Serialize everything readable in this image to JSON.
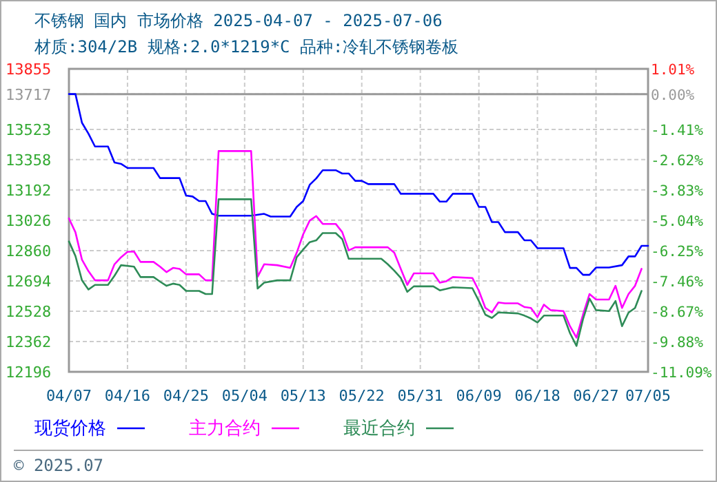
{
  "chart_data": {
    "type": "line",
    "title": "不锈钢 国内 市场价格 2025-04-07 - 2025-07-06",
    "subtitle": "材质:304/2B 规格:2.0*1219*C 品种:冷轧不锈钢卷板",
    "xlim": [
      "--04-07",
      "--07-05"
    ],
    "xticks": [
      {
        "value": "--04-07",
        "label": "04/07"
      },
      {
        "value": "--04-16",
        "label": "04/16"
      },
      {
        "value": "--04-25",
        "label": "04/25"
      },
      {
        "value": "--05-04",
        "label": "05/04"
      },
      {
        "value": "--05-13",
        "label": "05/13"
      },
      {
        "value": "--05-22",
        "label": "05/22"
      },
      {
        "value": "--05-31",
        "label": "05/31"
      },
      {
        "value": "--06-09",
        "label": "06/09"
      },
      {
        "value": "--06-18",
        "label": "06/18"
      },
      {
        "value": "--06-27",
        "label": "06/27"
      },
      {
        "value": "--07-05",
        "label": "07/05"
      }
    ],
    "ylim": [
      12196,
      13855
    ],
    "yticks": [
      13855,
      13717,
      13523,
      13358,
      13192,
      13026,
      12860,
      12694,
      12528,
      12362,
      12196
    ],
    "y2lim": [
      -11.09,
      1.01
    ],
    "y2ticks": [
      {
        "value": 1.01,
        "label": "1.01%"
      },
      {
        "value": 0,
        "label": "0.00%"
      },
      {
        "value": -1.41,
        "label": "-1.41%"
      },
      {
        "value": -2.62,
        "label": "-2.62%"
      },
      {
        "value": -3.83,
        "label": "-3.83%"
      },
      {
        "value": -5.04,
        "label": "-5.04%"
      },
      {
        "value": -6.25,
        "label": "-6.25%"
      },
      {
        "value": -7.46,
        "label": "-7.46%"
      },
      {
        "value": -8.67,
        "label": "-8.67%"
      },
      {
        "value": -9.88,
        "label": "-9.88%"
      },
      {
        "value": -11.09,
        "label": "-11.09%"
      }
    ],
    "ref_lines": [
      {
        "axis": "y2",
        "value": 0,
        "color": "#999999"
      }
    ],
    "grid": true,
    "legend": "bottom",
    "line_style": "solid",
    "annotations": [
      "© 2025.07"
    ],
    "series": [
      {
        "name": "现货价格",
        "color": "#0000ff",
        "x": [
          "--04-07",
          "--04-08",
          "--04-09",
          "--04-10",
          "--04-11",
          "--04-13",
          "--04-14",
          "--04-15",
          "--04-16",
          "--04-20",
          "--04-21",
          "--04-24",
          "--04-25",
          "--04-26",
          "--04-27",
          "--04-28",
          "--04-29",
          "--04-30",
          "--05-05",
          "--05-07",
          "--05-08",
          "--05-11",
          "--05-12",
          "--05-13",
          "--05-14",
          "--05-15",
          "--05-16",
          "--05-18",
          "--05-19",
          "--05-20",
          "--05-21",
          "--05-22",
          "--05-23",
          "--05-27",
          "--05-28",
          "--06-02",
          "--06-03",
          "--06-04",
          "--06-05",
          "--06-08",
          "--06-09",
          "--06-10",
          "--06-11",
          "--06-12",
          "--06-13",
          "--06-15",
          "--06-16",
          "--06-17",
          "--06-18",
          "--06-22",
          "--06-23",
          "--06-24",
          "--06-25",
          "--06-26",
          "--06-27",
          "--06-29",
          "--07-01",
          "--07-02",
          "--07-03",
          "--07-04",
          "--07-05"
        ],
        "values": [
          13717,
          13717,
          13560,
          13500,
          13430,
          13430,
          13342,
          13335,
          13312,
          13312,
          13257,
          13257,
          13161,
          13156,
          13131,
          13131,
          13061,
          13051,
          13051,
          13061,
          13046,
          13046,
          13099,
          13131,
          13220,
          13255,
          13300,
          13300,
          13282,
          13282,
          13242,
          13242,
          13224,
          13224,
          13171,
          13171,
          13128,
          13128,
          13171,
          13171,
          13099,
          13099,
          13016,
          13016,
          12961,
          12961,
          12916,
          12916,
          12873,
          12873,
          12765,
          12765,
          12727,
          12727,
          12767,
          12767,
          12780,
          12828,
          12828,
          12886,
          12886
        ]
      },
      {
        "name": "主力合约",
        "color": "#ff00ff",
        "x": [
          "--04-07",
          "--04-08",
          "--04-09",
          "--04-10",
          "--04-11",
          "--04-13",
          "--04-14",
          "--04-15",
          "--04-16",
          "--04-17",
          "--04-18",
          "--04-20",
          "--04-21",
          "--04-22",
          "--04-23",
          "--04-24",
          "--04-25",
          "--04-27",
          "--04-28",
          "--04-29",
          "--04-30",
          "--05-05",
          "--05-06",
          "--05-07",
          "--05-09",
          "--05-11",
          "--05-12",
          "--05-13",
          "--05-14",
          "--05-15",
          "--05-16",
          "--05-18",
          "--05-19",
          "--05-20",
          "--05-21",
          "--05-26",
          "--05-27",
          "--05-28",
          "--05-29",
          "--05-30",
          "--06-02",
          "--06-03",
          "--06-04",
          "--06-05",
          "--06-08",
          "--06-09",
          "--06-10",
          "--06-11",
          "--06-12",
          "--06-13",
          "--06-15",
          "--06-16",
          "--06-17",
          "--06-18",
          "--06-19",
          "--06-20",
          "--06-22",
          "--06-23",
          "--06-24",
          "--06-25",
          "--06-26",
          "--06-27",
          "--06-29",
          "--06-30",
          "--07-01",
          "--07-02",
          "--07-03",
          "--07-04"
        ],
        "values": [
          13036,
          12960,
          12810,
          12747,
          12697,
          12697,
          12785,
          12823,
          12853,
          12855,
          12798,
          12798,
          12772,
          12742,
          12765,
          12760,
          12730,
          12730,
          12697,
          12697,
          13405,
          13405,
          12717,
          12785,
          12780,
          12765,
          12848,
          12949,
          13024,
          13049,
          13006,
          13006,
          12961,
          12861,
          12878,
          12878,
          12848,
          12760,
          12672,
          12735,
          12735,
          12684,
          12692,
          12715,
          12710,
          12640,
          12546,
          12521,
          12576,
          12571,
          12571,
          12551,
          12546,
          12496,
          12564,
          12534,
          12529,
          12446,
          12383,
          12509,
          12622,
          12592,
          12592,
          12667,
          12546,
          12622,
          12667,
          12760
        ]
      },
      {
        "name": "最近合约",
        "color": "#2e8b57",
        "x": [
          "--04-07",
          "--04-08",
          "--04-09",
          "--04-10",
          "--04-11",
          "--04-13",
          "--04-14",
          "--04-15",
          "--04-17",
          "--04-18",
          "--04-20",
          "--04-21",
          "--04-22",
          "--04-23",
          "--04-24",
          "--04-25",
          "--04-27",
          "--04-28",
          "--04-29",
          "--04-30",
          "--05-05",
          "--05-06",
          "--05-07",
          "--05-09",
          "--05-11",
          "--05-12",
          "--05-13",
          "--05-14",
          "--05-15",
          "--05-16",
          "--05-18",
          "--05-19",
          "--05-20",
          "--05-25",
          "--05-26",
          "--05-27",
          "--05-28",
          "--05-29",
          "--05-30",
          "--06-02",
          "--06-03",
          "--06-04",
          "--06-05",
          "--06-08",
          "--06-09",
          "--06-10",
          "--06-11",
          "--06-12",
          "--06-15",
          "--06-16",
          "--06-17",
          "--06-18",
          "--06-19",
          "--06-22",
          "--06-23",
          "--06-24",
          "--06-25",
          "--06-26",
          "--06-27",
          "--06-29",
          "--06-30",
          "--07-01",
          "--07-02",
          "--07-03",
          "--07-04"
        ],
        "values": [
          12910,
          12830,
          12697,
          12647,
          12672,
          12672,
          12722,
          12780,
          12772,
          12715,
          12715,
          12690,
          12667,
          12679,
          12672,
          12639,
          12639,
          12622,
          12622,
          13141,
          13141,
          12652,
          12684,
          12697,
          12697,
          12823,
          12866,
          12906,
          12916,
          12956,
          12956,
          12923,
          12815,
          12815,
          12785,
          12750,
          12710,
          12634,
          12664,
          12664,
          12642,
          12650,
          12659,
          12654,
          12584,
          12509,
          12491,
          12521,
          12516,
          12504,
          12488,
          12466,
          12504,
          12504,
          12408,
          12338,
          12484,
          12597,
          12534,
          12529,
          12584,
          12446,
          12520,
          12546,
          12639
        ]
      }
    ]
  }
}
